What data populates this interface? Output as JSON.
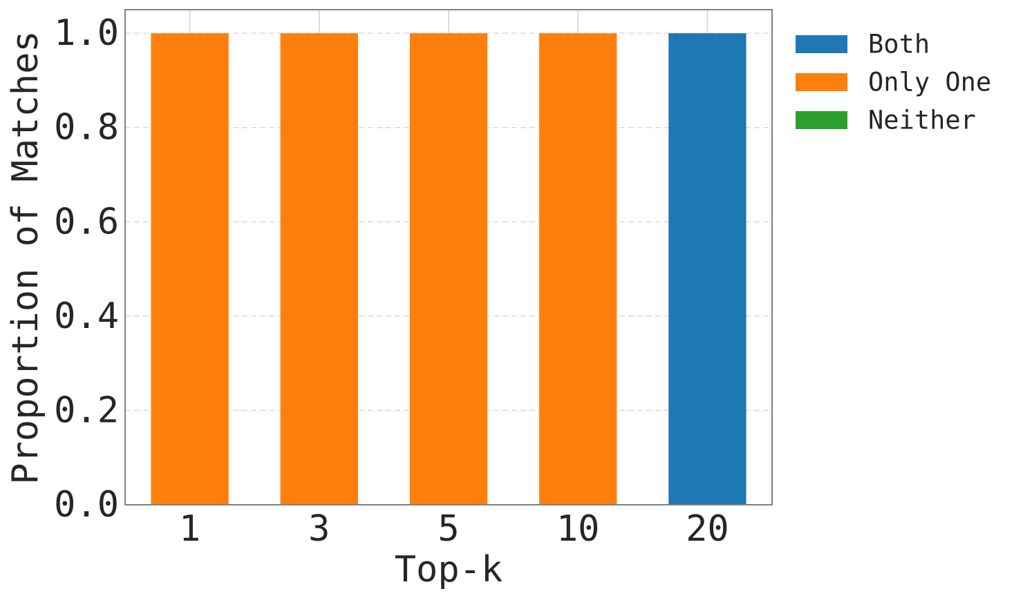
{
  "chart_data": {
    "type": "bar",
    "stacked": true,
    "title": "",
    "xlabel": "Top-k",
    "ylabel": "Proportion of Matches",
    "categories": [
      "1",
      "3",
      "5",
      "10",
      "20"
    ],
    "ylim": [
      0,
      1.05
    ],
    "yticks": [
      "0.0",
      "0.2",
      "0.4",
      "0.6",
      "0.8",
      "1.0"
    ],
    "grid": true,
    "legend_position": "outside-right-top",
    "series": [
      {
        "name": "Both",
        "color": "#1f77b4",
        "values": [
          0,
          0,
          0,
          0,
          1.0
        ]
      },
      {
        "name": "Only One",
        "color": "#ff7f0e",
        "values": [
          1.0,
          1.0,
          1.0,
          1.0,
          0
        ]
      },
      {
        "name": "Neither",
        "color": "#2ca02c",
        "values": [
          0,
          0,
          0,
          0,
          0
        ]
      }
    ]
  }
}
